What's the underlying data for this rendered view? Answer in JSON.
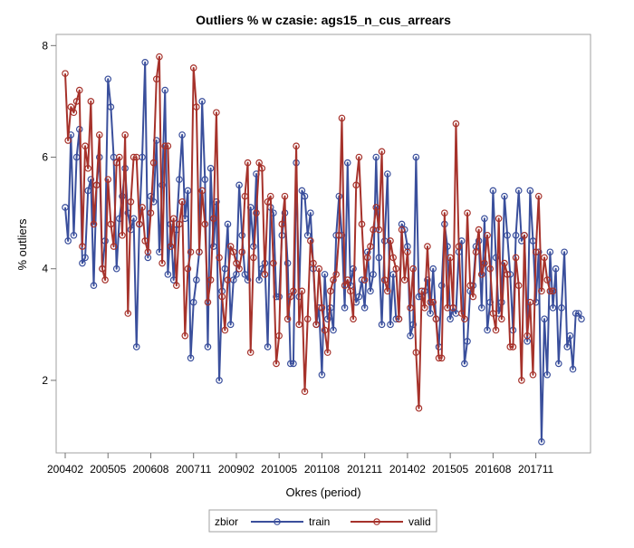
{
  "chart_data": {
    "type": "line",
    "title": "Outliers % w czasie: ags15_n_cus_arrears",
    "xlabel": "Okres (period)",
    "ylabel": "% outliers",
    "x_tick_labels": [
      "200402",
      "200505",
      "200608",
      "200711",
      "200902",
      "201005",
      "201108",
      "201211",
      "201402",
      "201505",
      "201608",
      "201711"
    ],
    "y_tick_labels": [
      "2",
      "4",
      "6",
      "8"
    ],
    "ylim": [
      0.7,
      8.2
    ],
    "grid": false,
    "legend": {
      "placement": "bottom",
      "title": "zbior",
      "entries": [
        "train",
        "valid"
      ]
    },
    "x_start": "2004-02",
    "colors": {
      "train": "#3a4f9c",
      "valid": "#a6322b"
    },
    "series": [
      {
        "name": "train",
        "values": [
          5.1,
          4.5,
          6.4,
          4.6,
          6.0,
          6.5,
          4.1,
          4.2,
          5.4,
          5.6,
          3.7,
          5.5,
          6.0,
          4.0,
          4.5,
          7.4,
          6.9,
          6.0,
          4.0,
          4.9,
          5.3,
          5.8,
          5.0,
          4.7,
          4.9,
          2.6,
          4.8,
          6.0,
          7.7,
          4.2,
          5.3,
          5.2,
          6.3,
          4.3,
          5.5,
          7.2,
          3.9,
          4.8,
          3.8,
          4.7,
          5.6,
          6.4,
          4.9,
          5.4,
          2.4,
          3.4,
          3.8,
          4.3,
          7.0,
          5.6,
          2.6,
          5.8,
          4.4,
          5.2,
          2.0,
          3.6,
          4.0,
          4.8,
          3.0,
          3.8,
          3.9,
          5.5,
          4.6,
          3.9,
          3.8,
          5.1,
          4.4,
          5.7,
          3.8,
          4.0,
          4.1,
          2.6,
          5.1,
          5.0,
          3.5,
          3.5,
          4.6,
          5.0,
          4.1,
          2.3,
          2.3,
          5.9,
          3.5,
          5.4,
          5.3,
          4.6,
          5.0,
          4.0,
          3.0,
          3.3,
          2.1,
          3.9,
          3.1,
          3.3,
          2.9,
          4.6,
          5.3,
          4.6,
          3.3,
          5.9,
          3.7,
          4.0,
          3.4,
          3.5,
          3.8,
          3.3,
          4.3,
          3.6,
          3.9,
          6.0,
          4.2,
          3.0,
          4.5,
          5.7,
          3.0,
          3.9,
          3.1,
          3.1,
          4.8,
          4.7,
          4.4,
          2.8,
          3.0,
          6.0,
          3.5,
          3.5,
          3.6,
          3.8,
          3.2,
          4.0,
          3.1,
          2.6,
          3.7,
          4.8,
          4.4,
          3.1,
          3.3,
          3.2,
          4.3,
          4.5,
          2.3,
          2.7,
          3.6,
          3.7,
          4.4,
          4.5,
          3.3,
          4.9,
          2.9,
          3.4,
          5.4,
          4.2,
          3.2,
          3.4,
          5.3,
          4.6,
          3.9,
          2.9,
          4.6,
          5.4,
          4.5,
          4.6,
          2.7,
          5.4,
          4.5,
          3.4,
          4.3,
          0.9,
          3.1,
          2.1,
          4.3,
          3.3,
          4.0,
          2.3,
          3.3,
          4.3,
          2.6,
          2.8,
          2.2,
          3.2,
          3.2,
          3.1
        ]
      },
      {
        "name": "valid",
        "values": [
          7.5,
          6.3,
          6.9,
          6.8,
          7.0,
          7.2,
          4.4,
          6.2,
          5.8,
          7.0,
          4.8,
          5.5,
          6.4,
          4.0,
          3.8,
          5.6,
          4.8,
          4.4,
          5.9,
          6.0,
          4.6,
          6.4,
          3.2,
          5.2,
          6.0,
          6.0,
          4.8,
          5.1,
          4.5,
          4.3,
          5.0,
          5.9,
          7.4,
          7.8,
          4.1,
          6.2,
          6.2,
          4.4,
          4.9,
          3.7,
          4.8,
          5.2,
          2.8,
          4.0,
          4.3,
          7.6,
          6.9,
          4.3,
          5.4,
          4.8,
          3.4,
          3.8,
          4.9,
          6.8,
          4.2,
          3.5,
          2.9,
          3.8,
          4.4,
          4.3,
          4.1,
          4.0,
          4.3,
          5.3,
          5.9,
          2.5,
          4.2,
          5.0,
          5.9,
          5.8,
          3.9,
          5.2,
          5.3,
          4.1,
          2.3,
          2.8,
          4.8,
          5.3,
          3.1,
          3.5,
          3.6,
          6.2,
          3.0,
          3.6,
          1.8,
          3.1,
          4.5,
          4.1,
          3.0,
          4.0,
          3.3,
          2.9,
          2.5,
          3.6,
          3.8,
          3.9,
          4.6,
          6.7,
          3.7,
          3.8,
          3.6,
          3.1,
          5.5,
          6.0,
          4.8,
          3.8,
          4.2,
          4.4,
          4.7,
          5.1,
          4.7,
          6.1,
          3.8,
          3.6,
          4.5,
          4.2,
          4.0,
          3.1,
          4.7,
          3.8,
          4.3,
          3.3,
          4.0,
          2.5,
          1.5,
          3.6,
          3.3,
          4.4,
          3.4,
          3.4,
          3.1,
          2.4,
          2.4,
          5.0,
          3.3,
          4.2,
          3.3,
          6.6,
          4.4,
          3.2,
          3.1,
          5.0,
          3.7,
          3.5,
          4.3,
          4.7,
          3.9,
          4.1,
          4.6,
          4.0,
          3.2,
          2.9,
          4.9,
          3.1,
          4.1,
          3.9,
          2.6,
          2.6,
          4.2,
          3.7,
          2.0,
          4.6,
          2.8,
          3.4,
          2.1,
          4.3,
          5.3,
          3.6,
          4.2,
          3.8,
          3.6,
          3.6
        ]
      }
    ]
  }
}
